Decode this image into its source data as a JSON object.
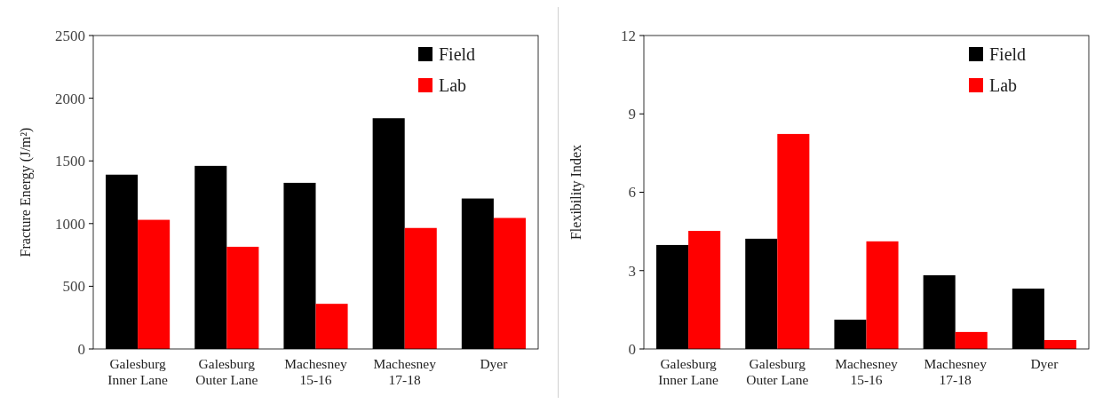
{
  "chart_data": [
    {
      "type": "bar",
      "ylabel": "Fracture Energy (J/m²)",
      "categories": [
        "Galesburg Inner Lane",
        "Galesburg Outer Lane",
        "Machesney 15-16",
        "Machesney 17-18",
        "Dyer"
      ],
      "series": [
        {
          "name": "Field",
          "color": "#000000",
          "values": [
            1390,
            1460,
            1325,
            1840,
            1200
          ]
        },
        {
          "name": "Lab",
          "color": "#ff0000",
          "values": [
            1030,
            815,
            360,
            965,
            1045
          ]
        }
      ],
      "ylim": [
        0,
        2500
      ],
      "yticks": [
        0,
        500,
        1000,
        1500,
        2000,
        2500
      ],
      "grid": false,
      "legend": "top right"
    },
    {
      "type": "bar",
      "ylabel": "Flexibility Index",
      "categories": [
        "Galesburg Inner Lane",
        "Galesburg Outer Lane",
        "Machesney 15-16",
        "Machesney 17-18",
        "Dyer"
      ],
      "series": [
        {
          "name": "Field",
          "color": "#000000",
          "values": [
            3.98,
            4.22,
            1.12,
            2.82,
            2.31
          ]
        },
        {
          "name": "Lab",
          "color": "#ff0000",
          "values": [
            4.52,
            8.23,
            4.12,
            0.65,
            0.34
          ]
        }
      ],
      "ylim": [
        0,
        12
      ],
      "yticks": [
        0,
        3,
        6,
        9,
        12
      ],
      "grid": false,
      "legend": "top right"
    }
  ]
}
